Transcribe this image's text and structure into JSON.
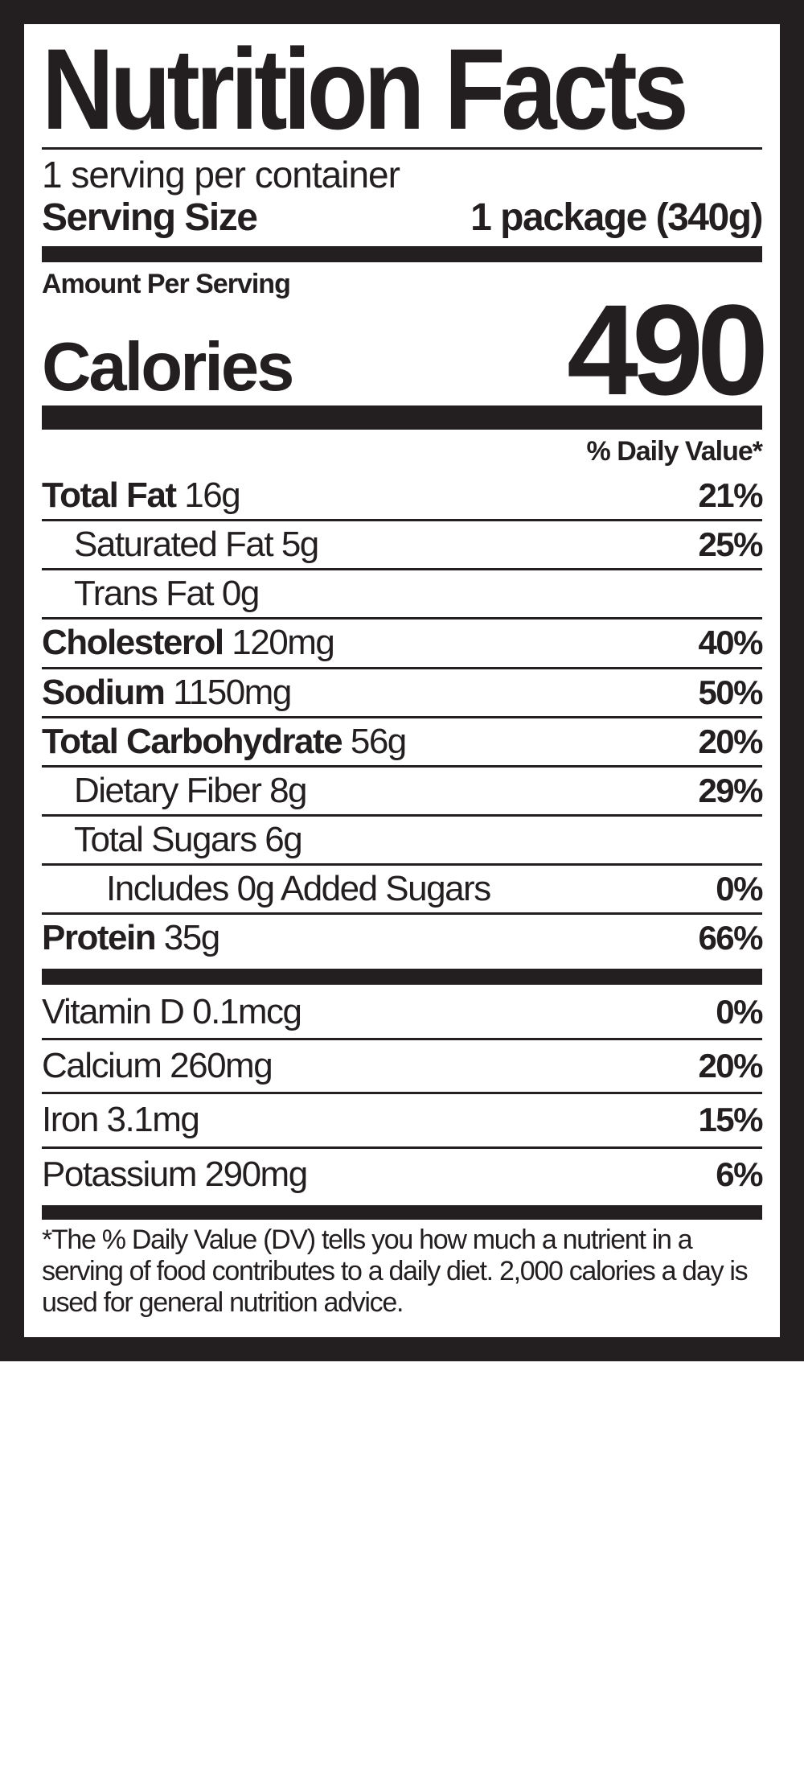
{
  "title": "Nutrition Facts",
  "servings_per_container": "1 serving per container",
  "serving_size_label": "Serving Size",
  "serving_size_value": "1 package (340g)",
  "amount_per_serving": "Amount Per Serving",
  "calories_label": "Calories",
  "calories_value": "490",
  "dv_header": "% Daily Value*",
  "nutrients": [
    {
      "label": "Total Fat",
      "amount": "16g",
      "dv": "21%",
      "bold": true,
      "indent": 0
    },
    {
      "label": "Saturated Fat",
      "amount": "5g",
      "dv": "25%",
      "bold": false,
      "indent": 1
    },
    {
      "label": "Trans Fat",
      "amount": "0g",
      "dv": "",
      "bold": false,
      "indent": 1
    },
    {
      "label": "Cholesterol",
      "amount": "120mg",
      "dv": "40%",
      "bold": true,
      "indent": 0
    },
    {
      "label": "Sodium",
      "amount": "1150mg",
      "dv": "50%",
      "bold": true,
      "indent": 0
    },
    {
      "label": "Total Carbohydrate",
      "amount": "56g",
      "dv": "20%",
      "bold": true,
      "indent": 0
    },
    {
      "label": "Dietary Fiber",
      "amount": "8g",
      "dv": "29%",
      "bold": false,
      "indent": 1
    },
    {
      "label": "Total Sugars",
      "amount": "6g",
      "dv": "",
      "bold": false,
      "indent": 1
    },
    {
      "label": "Includes 0g Added Sugars",
      "amount": "",
      "dv": "0%",
      "bold": false,
      "indent": 2
    },
    {
      "label": "Protein",
      "amount": "35g",
      "dv": "66%",
      "bold": true,
      "indent": 0
    }
  ],
  "vitamins": [
    {
      "label": "Vitamin D 0.1mcg",
      "dv": "0%"
    },
    {
      "label": "Calcium 260mg",
      "dv": "20%"
    },
    {
      "label": "Iron 3.1mg",
      "dv": "15%"
    },
    {
      "label": "Potassium 290mg",
      "dv": "6%"
    }
  ],
  "footnote": "*The % Daily Value (DV) tells you how much a nutrient in a serving of food contributes to a daily diet. 2,000 calories a day is used for general nutrition advice."
}
